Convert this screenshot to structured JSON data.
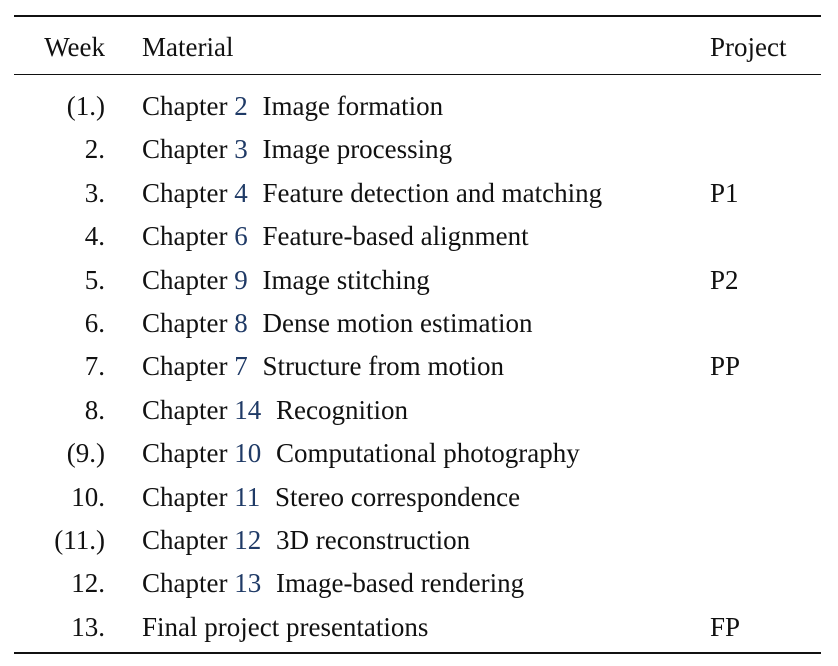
{
  "table": {
    "headers": {
      "week": "Week",
      "material": "Material",
      "project": "Project"
    },
    "rows": [
      {
        "week": "(1.)",
        "chapter_word": "Chapter",
        "chapter_number": "2",
        "topic": "Image formation",
        "project": ""
      },
      {
        "week": "2.",
        "chapter_word": "Chapter",
        "chapter_number": "3",
        "topic": "Image processing",
        "project": ""
      },
      {
        "week": "3.",
        "chapter_word": "Chapter",
        "chapter_number": "4",
        "topic": "Feature detection and matching",
        "project": "P1"
      },
      {
        "week": "4.",
        "chapter_word": "Chapter",
        "chapter_number": "6",
        "topic": "Feature-based alignment",
        "project": ""
      },
      {
        "week": "5.",
        "chapter_word": "Chapter",
        "chapter_number": "9",
        "topic": "Image stitching",
        "project": "P2"
      },
      {
        "week": "6.",
        "chapter_word": "Chapter",
        "chapter_number": "8",
        "topic": "Dense motion estimation",
        "project": ""
      },
      {
        "week": "7.",
        "chapter_word": "Chapter",
        "chapter_number": "7",
        "topic": "Structure from motion",
        "project": "PP"
      },
      {
        "week": "8.",
        "chapter_word": "Chapter",
        "chapter_number": "14",
        "topic": "Recognition",
        "project": ""
      },
      {
        "week": "(9.)",
        "chapter_word": "Chapter",
        "chapter_number": "10",
        "topic": "Computational photography",
        "project": ""
      },
      {
        "week": "10.",
        "chapter_word": "Chapter",
        "chapter_number": "11",
        "topic": "Stereo correspondence",
        "project": ""
      },
      {
        "week": "(11.)",
        "chapter_word": "Chapter",
        "chapter_number": "12",
        "topic": "3D reconstruction",
        "project": ""
      },
      {
        "week": "12.",
        "chapter_word": "Chapter",
        "chapter_number": "13",
        "topic": "Image-based rendering",
        "project": ""
      },
      {
        "week": "13.",
        "chapter_word": "",
        "chapter_number": "",
        "topic": "Final project presentations",
        "project": "FP"
      }
    ]
  },
  "colors": {
    "text": "#111111",
    "chapter_number_link": "#1f3a66",
    "rules": "#111111"
  }
}
